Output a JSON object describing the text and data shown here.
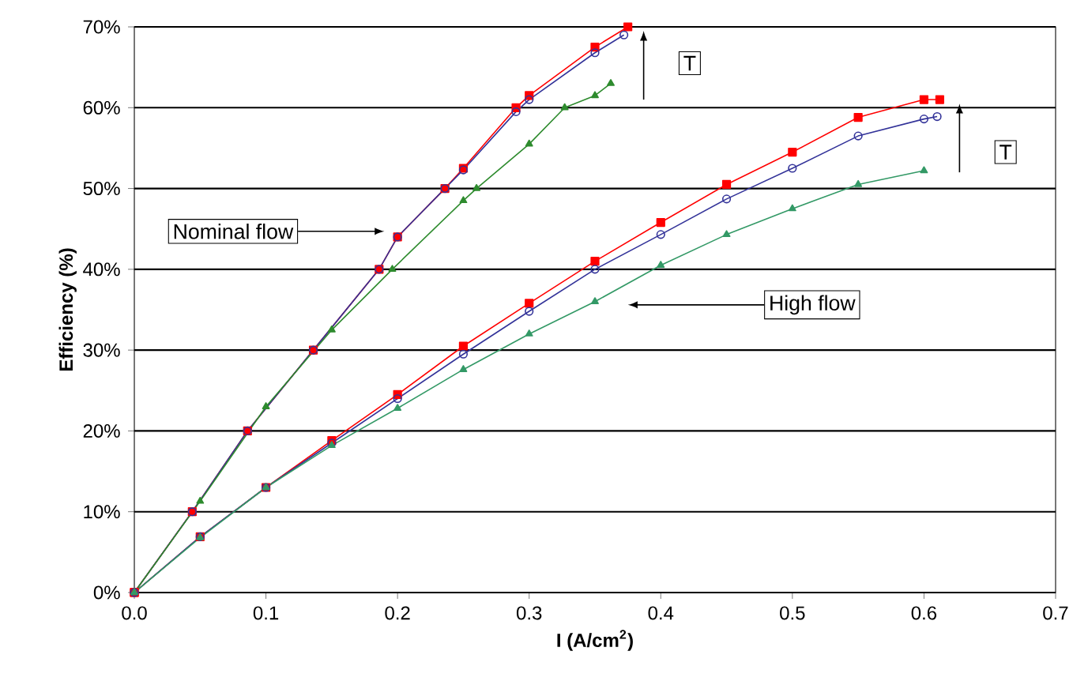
{
  "chart_data": {
    "type": "line",
    "xlabel": "I (A/cm$^{2}$)",
    "ylabel": "Efficiency (%)",
    "xlim": [
      0,
      0.7
    ],
    "ylim": [
      0,
      70
    ],
    "xticks": [
      {
        "value": 0,
        "label": "0.0"
      },
      0.1,
      0.2,
      0.3,
      0.4,
      0.5,
      0.6,
      0.7
    ],
    "yticks": [
      {
        "value": 0,
        "label": "0%"
      },
      {
        "value": 10,
        "label": "10%"
      },
      {
        "value": 20,
        "label": "20%"
      },
      {
        "value": 30,
        "label": "30%"
      },
      {
        "value": 40,
        "label": "40%"
      },
      {
        "value": 50,
        "label": "50%"
      },
      {
        "value": 60,
        "label": "60%"
      },
      {
        "value": 70,
        "label": "70%"
      }
    ],
    "grid": "y",
    "series": [
      {
        "color": "#ff0000",
        "marker": "square",
        "x": [
          0,
          0.044,
          0.086,
          0.136,
          0.186,
          0.2,
          0.236,
          0.25,
          0.29,
          0.3,
          0.35,
          0.375
        ],
        "values": [
          0,
          10,
          20,
          30,
          40,
          44,
          50,
          52.5,
          60,
          61.5,
          67.5,
          70
        ]
      },
      {
        "color": "#333399",
        "marker": "circle",
        "x": [
          0,
          0.044,
          0.086,
          0.136,
          0.186,
          0.2,
          0.236,
          0.25,
          0.29,
          0.3,
          0.35,
          0.372
        ],
        "values": [
          0,
          10,
          20,
          30,
          40,
          44,
          50,
          52.3,
          59.5,
          61,
          66.8,
          69
        ]
      },
      {
        "color": "#2e8b2e",
        "marker": "triangle",
        "x": [
          0,
          0.05,
          0.1,
          0.15,
          0.196,
          0.25,
          0.26,
          0.3,
          0.327,
          0.35,
          0.362
        ],
        "values": [
          0,
          11.3,
          23,
          32.5,
          40,
          48.5,
          50,
          55.5,
          60,
          61.5,
          63
        ]
      },
      {
        "color": "#ff0000",
        "marker": "square",
        "x": [
          0,
          0.05,
          0.1,
          0.15,
          0.2,
          0.25,
          0.3,
          0.35,
          0.4,
          0.45,
          0.5,
          0.55,
          0.6,
          0.612
        ],
        "values": [
          0,
          6.9,
          13,
          18.8,
          24.5,
          30.5,
          35.8,
          41,
          45.8,
          50.5,
          54.5,
          58.8,
          61,
          61
        ]
      },
      {
        "color": "#333399",
        "marker": "circle",
        "x": [
          0,
          0.05,
          0.1,
          0.15,
          0.2,
          0.25,
          0.3,
          0.35,
          0.4,
          0.45,
          0.5,
          0.55,
          0.6,
          0.61
        ],
        "values": [
          0,
          6.9,
          13,
          18.5,
          24,
          29.5,
          34.8,
          40,
          44.3,
          48.7,
          52.5,
          56.5,
          58.6,
          58.9
        ]
      },
      {
        "color": "#339966",
        "marker": "triangle",
        "x": [
          0,
          0.05,
          0.1,
          0.15,
          0.2,
          0.25,
          0.3,
          0.35,
          0.4,
          0.45,
          0.5,
          0.55,
          0.6
        ],
        "values": [
          0,
          6.8,
          13,
          18.2,
          22.8,
          27.6,
          32,
          36,
          40.5,
          44.3,
          47.5,
          50.5,
          52.2
        ]
      }
    ],
    "annotations": [
      "T",
      "T",
      "Nominal flow",
      "High flow"
    ]
  }
}
